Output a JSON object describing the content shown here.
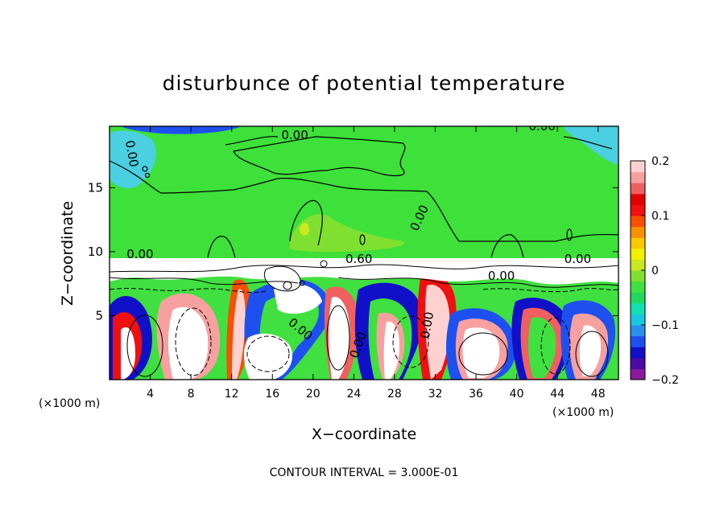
{
  "chart_data": {
    "type": "heatmap",
    "title": "disturbunce of potential temperature",
    "xlabel": "X−coordinate",
    "ylabel": "Z−coordinate",
    "x_unit": "(×1000 m)",
    "y_unit": "(×1000 m)",
    "xlim": [
      0,
      50
    ],
    "ylim": [
      0,
      19.8
    ],
    "x_ticks": [
      4,
      8,
      12,
      16,
      20,
      24,
      28,
      32,
      36,
      40,
      44,
      48
    ],
    "y_ticks": [
      5,
      10,
      15
    ],
    "colorbar": {
      "range": [
        -0.2,
        0.2
      ],
      "ticks": [
        0.2,
        0.1,
        0,
        -0.1,
        -0.2
      ],
      "tick_labels": [
        "0.2",
        "0.1",
        "0",
        "−0.1",
        "−0.2"
      ],
      "colors": [
        "#8b1a9e",
        "#4b0aa8",
        "#1010c8",
        "#1e50f0",
        "#2a90f0",
        "#18c8e0",
        "#10e0b0",
        "#20d860",
        "#40e040",
        "#80e030",
        "#c8e820",
        "#f0f000",
        "#f8c800",
        "#f89000",
        "#f85000",
        "#f01010",
        "#e00000",
        "#f06060",
        "#f8a0a0",
        "#ffd0d0"
      ]
    },
    "contour_labels": [
      {
        "text": "0.00",
        "x": 18.2,
        "y": 18.8
      },
      {
        "text": "0.00",
        "x": 42.5,
        "y": 19.5
      },
      {
        "text": "0.00",
        "x": 1.8,
        "y": 17.6,
        "rotate": 80
      },
      {
        "text": "0.00",
        "x": 30.8,
        "y": 12.5,
        "rotate": -65
      },
      {
        "text": "0.00",
        "x": 3.0,
        "y": 9.5
      },
      {
        "text": "0.60",
        "x": 24.5,
        "y": 9.1
      },
      {
        "text": "0.00",
        "x": 46.0,
        "y": 9.1
      },
      {
        "text": "0.00",
        "x": 38.5,
        "y": 7.8
      },
      {
        "text": "0.00",
        "x": 18.5,
        "y": 3.7,
        "rotate": 40
      },
      {
        "text": "0.00",
        "x": 31.6,
        "y": 4.2,
        "rotate": -80
      },
      {
        "text": "0.00",
        "x": 24.8,
        "y": 2.6,
        "rotate": -70
      }
    ],
    "annotation": "CONTOUR INTERVAL = 3.000E-01"
  }
}
